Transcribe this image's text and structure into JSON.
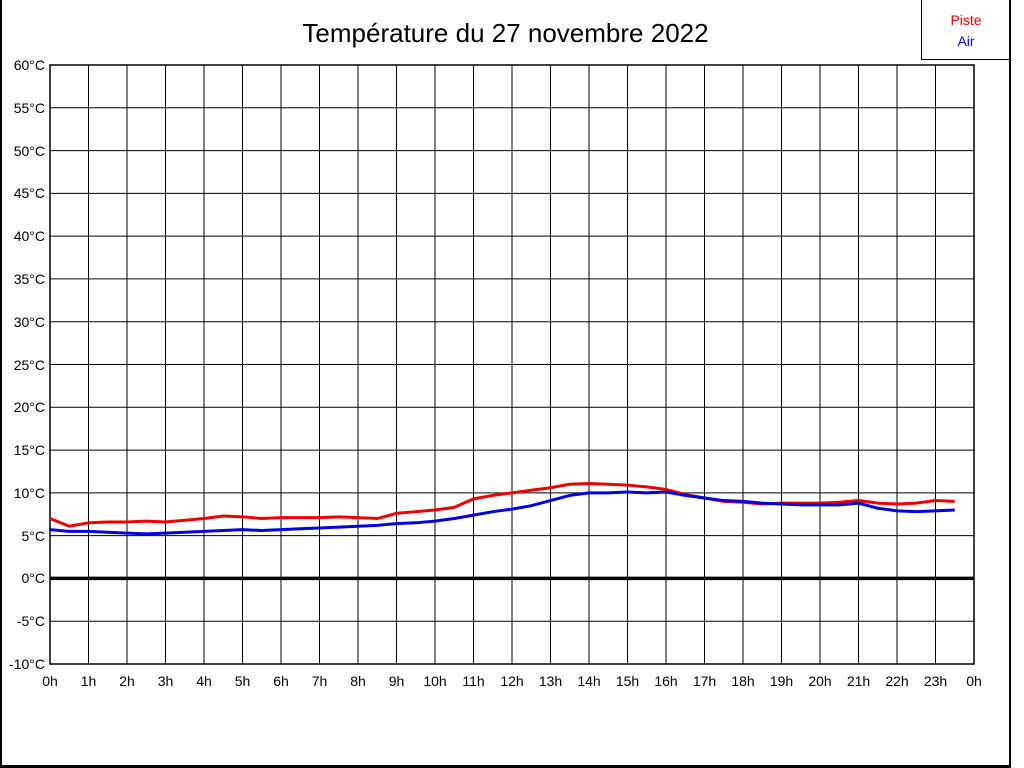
{
  "title": {
    "text": "Température du 27 novembre 2022"
  },
  "legend": {
    "items": [
      {
        "label": "Piste",
        "color": "#ee0000"
      },
      {
        "label": "Air",
        "color": "#0000dd"
      }
    ]
  },
  "colors": {
    "grid": "#000000",
    "axis_box": "#000000",
    "background": "#ffffff",
    "piste": "#ee0000",
    "air": "#0000dd"
  },
  "chart_data": {
    "type": "line",
    "title": "Température du 27 novembre 2022",
    "xlabel": "",
    "ylabel": "",
    "xlim_hours": [
      0,
      24
    ],
    "ylim": [
      -10,
      60
    ],
    "y_tick_step": 5,
    "grid": true,
    "zero_line_bold": true,
    "legend_position": "top-right",
    "x_tick_labels": [
      "0h",
      "1h",
      "2h",
      "3h",
      "4h",
      "5h",
      "6h",
      "7h",
      "8h",
      "9h",
      "10h",
      "11h",
      "12h",
      "13h",
      "14h",
      "15h",
      "16h",
      "17h",
      "18h",
      "19h",
      "20h",
      "21h",
      "22h",
      "23h",
      "0h"
    ],
    "y_tick_labels": [
      "60°C",
      "55°C",
      "50°C",
      "45°C",
      "40°C",
      "35°C",
      "30°C",
      "25°C",
      "20°C",
      "15°C",
      "10°C",
      "5°C",
      "0°C",
      "-5°C",
      "-10°C"
    ],
    "sample_interval_hours": 0.5,
    "series": [
      {
        "name": "Piste",
        "color": "#ee0000",
        "values": [
          7.0,
          6.1,
          6.5,
          6.6,
          6.6,
          6.7,
          6.6,
          6.8,
          7.0,
          7.3,
          7.2,
          7.0,
          7.1,
          7.1,
          7.1,
          7.2,
          7.1,
          7.0,
          7.6,
          7.8,
          8.0,
          8.3,
          9.3,
          9.7,
          10.0,
          10.3,
          10.6,
          11.0,
          11.1,
          11.0,
          10.9,
          10.7,
          10.4,
          9.8,
          9.4,
          9.0,
          8.9,
          8.7,
          8.8,
          8.8,
          8.8,
          8.9,
          9.1,
          8.8,
          8.7,
          8.8,
          9.1,
          9.0
        ]
      },
      {
        "name": "Air",
        "color": "#0000dd",
        "values": [
          5.7,
          5.5,
          5.5,
          5.4,
          5.3,
          5.2,
          5.3,
          5.4,
          5.5,
          5.6,
          5.7,
          5.6,
          5.7,
          5.8,
          5.9,
          6.0,
          6.1,
          6.2,
          6.4,
          6.5,
          6.7,
          7.0,
          7.4,
          7.8,
          8.1,
          8.5,
          9.1,
          9.7,
          10.0,
          10.0,
          10.1,
          10.0,
          10.1,
          9.7,
          9.4,
          9.1,
          9.0,
          8.8,
          8.7,
          8.6,
          8.6,
          8.6,
          8.8,
          8.2,
          7.9,
          7.8,
          7.9,
          8.0
        ]
      }
    ]
  }
}
